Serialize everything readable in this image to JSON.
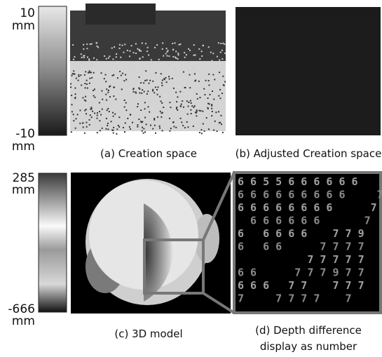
{
  "colorbar_top": {
    "max": "10",
    "max_unit": "mm",
    "min": "-10",
    "min_unit": "mm"
  },
  "colorbar_bottom": {
    "max": "285",
    "max_unit": "mm",
    "min": "-666",
    "min_unit": "mm"
  },
  "panels": [
    {
      "caption": "(a) Creation space"
    },
    {
      "caption": "(b) Adjusted Creation space"
    },
    {
      "caption": "(c) 3D model"
    },
    {
      "caption_lines": [
        "(d) Depth difference",
        "display as number"
      ],
      "digit_rows": [
        "6 6 5 5 6 6 6 6 6 6    7",
        "6 6 6 6 6 6 6 6 6     7",
        "6 6 6 6 6 6 6 6      7",
        "  6 6 6 6 6 6       7",
        "6   6 6 6 6    7 7 9",
        "6   6 6      7 7 7 7",
        "           7 7 7 7 7",
        "6 6      7 7 7 9 7 7",
        "6 6 6   7 7    7 7 7",
        "7     7 7 7 7    7"
      ]
    }
  ]
}
